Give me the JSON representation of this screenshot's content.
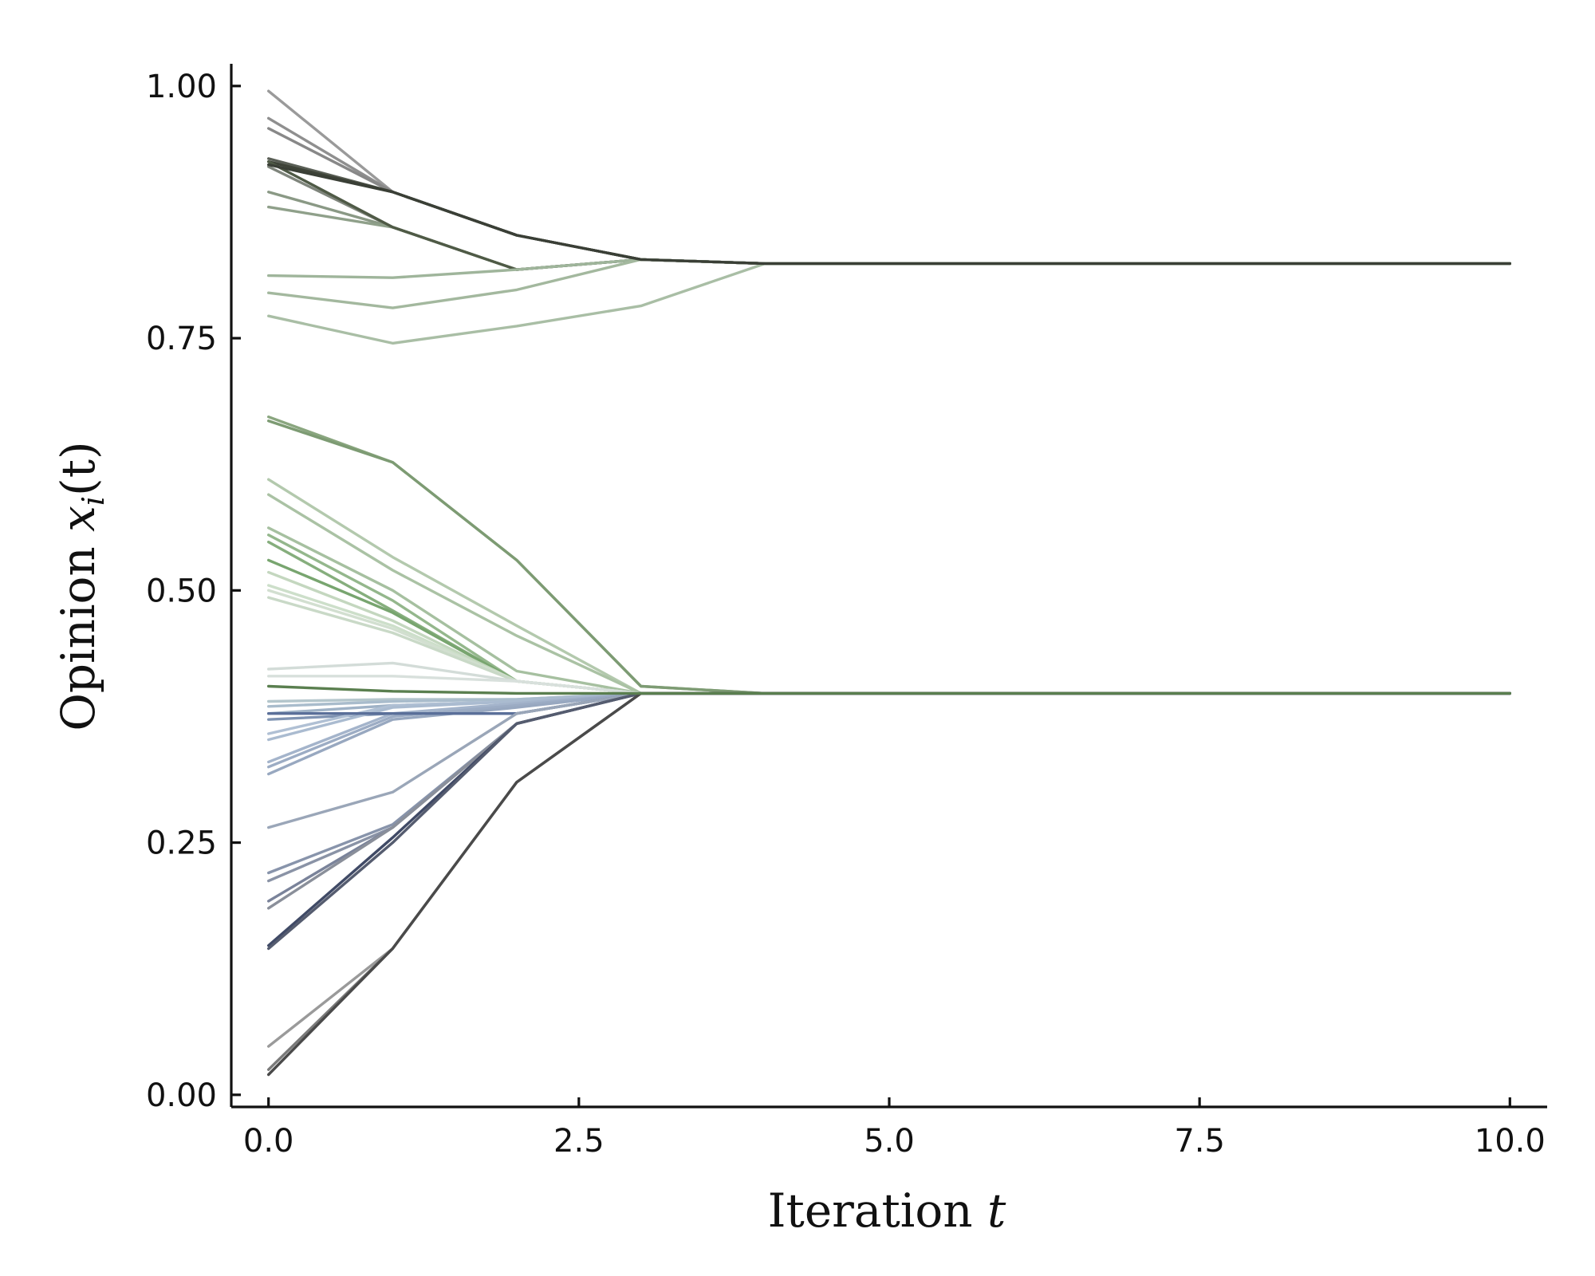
{
  "chart_data": {
    "type": "line",
    "xlabel": {
      "text": "Iteration",
      "var": "t"
    },
    "ylabel": {
      "text": "Opinion",
      "var": "x",
      "sub": "i",
      "arg": "(t)"
    },
    "xlim": [
      -0.3,
      10.3
    ],
    "ylim": [
      -0.012,
      1.022
    ],
    "x": [
      0,
      1,
      2,
      3,
      4,
      5,
      6,
      7,
      8,
      9,
      10
    ],
    "x_ticks": [
      0.0,
      2.5,
      5.0,
      7.5,
      10.0
    ],
    "x_tick_labels": [
      "0.0",
      "2.5",
      "5.0",
      "7.5",
      "10.0"
    ],
    "y_ticks": [
      0.0,
      0.25,
      0.5,
      0.75,
      1.0
    ],
    "y_tick_labels": [
      "0.00",
      "0.25",
      "0.50",
      "0.75",
      "1.00"
    ],
    "grid": false,
    "legend": "none",
    "series": [
      {
        "color": "#9a9a9a",
        "values": [
          0.995,
          0.895,
          0.852,
          0.828,
          0.824,
          0.824,
          0.824,
          0.824,
          0.824,
          0.824,
          0.824
        ]
      },
      {
        "color": "#8f8f8f",
        "values": [
          0.968,
          0.895,
          0.852,
          0.828,
          0.824,
          0.824,
          0.824,
          0.824,
          0.824,
          0.824,
          0.824
        ]
      },
      {
        "color": "#888888",
        "values": [
          0.958,
          0.895,
          0.852,
          0.828,
          0.824,
          0.824,
          0.824,
          0.824,
          0.824,
          0.824,
          0.824
        ]
      },
      {
        "color": "#5a5f56",
        "values": [
          0.928,
          0.895,
          0.852,
          0.828,
          0.824,
          0.824,
          0.824,
          0.824,
          0.824,
          0.824,
          0.824
        ]
      },
      {
        "color": "#7f857c",
        "values": [
          0.92,
          0.86,
          0.818,
          0.828,
          0.824,
          0.824,
          0.824,
          0.824,
          0.824,
          0.824,
          0.824
        ]
      },
      {
        "color": "#8a9985",
        "values": [
          0.895,
          0.86,
          0.818,
          0.828,
          0.824,
          0.824,
          0.824,
          0.824,
          0.824,
          0.824,
          0.824
        ]
      },
      {
        "color": "#8fa08a",
        "values": [
          0.88,
          0.86,
          0.818,
          0.828,
          0.824,
          0.824,
          0.824,
          0.824,
          0.824,
          0.824,
          0.824
        ]
      },
      {
        "color": "#3e4338",
        "values": [
          0.925,
          0.895,
          0.852,
          0.828,
          0.824,
          0.824,
          0.824,
          0.824,
          0.824,
          0.824,
          0.824
        ]
      },
      {
        "color": "#4f5a46",
        "values": [
          0.925,
          0.86,
          0.818,
          0.828,
          0.824,
          0.824,
          0.824,
          0.824,
          0.824,
          0.824,
          0.824
        ]
      },
      {
        "color": "#9fb59b",
        "values": [
          0.812,
          0.81,
          0.818,
          0.828,
          0.824,
          0.824,
          0.824,
          0.824,
          0.824,
          0.824,
          0.824
        ]
      },
      {
        "color": "#a3b89e",
        "values": [
          0.795,
          0.78,
          0.798,
          0.828,
          0.824,
          0.824,
          0.824,
          0.824,
          0.824,
          0.824,
          0.824
        ]
      },
      {
        "color": "#a9bea5",
        "values": [
          0.772,
          0.745,
          0.762,
          0.782,
          0.824,
          0.824,
          0.824,
          0.824,
          0.824,
          0.824,
          0.824
        ]
      },
      {
        "color": "#8aa67f",
        "values": [
          0.672,
          0.627,
          0.53,
          0.405,
          0.398,
          0.398,
          0.398,
          0.398,
          0.398,
          0.398,
          0.398
        ]
      },
      {
        "color": "#7d9b73",
        "values": [
          0.668,
          0.627,
          0.53,
          0.405,
          0.398,
          0.398,
          0.398,
          0.398,
          0.398,
          0.398,
          0.398
        ]
      },
      {
        "color": "#b3c9ad",
        "values": [
          0.61,
          0.533,
          0.465,
          0.398,
          0.398,
          0.398,
          0.398,
          0.398,
          0.398,
          0.398,
          0.398
        ]
      },
      {
        "color": "#aac2a4",
        "values": [
          0.595,
          0.52,
          0.455,
          0.398,
          0.398,
          0.398,
          0.398,
          0.398,
          0.398,
          0.398,
          0.398
        ]
      },
      {
        "color": "#a6c0a0",
        "values": [
          0.562,
          0.5,
          0.42,
          0.398,
          0.398,
          0.398,
          0.398,
          0.398,
          0.398,
          0.398,
          0.398
        ]
      },
      {
        "color": "#94b78c",
        "values": [
          0.555,
          0.49,
          0.41,
          0.398,
          0.398,
          0.398,
          0.398,
          0.398,
          0.398,
          0.398,
          0.398
        ]
      },
      {
        "color": "#86ae7d",
        "values": [
          0.548,
          0.48,
          0.41,
          0.398,
          0.398,
          0.398,
          0.398,
          0.398,
          0.398,
          0.398,
          0.398
        ]
      },
      {
        "color": "#78a56f",
        "values": [
          0.53,
          0.478,
          0.41,
          0.398,
          0.398,
          0.398,
          0.398,
          0.398,
          0.398,
          0.398,
          0.398
        ]
      },
      {
        "color": "#c4d7bf",
        "values": [
          0.518,
          0.47,
          0.41,
          0.398,
          0.398,
          0.398,
          0.398,
          0.398,
          0.398,
          0.398,
          0.398
        ]
      },
      {
        "color": "#cddfca",
        "values": [
          0.505,
          0.465,
          0.41,
          0.398,
          0.398,
          0.398,
          0.398,
          0.398,
          0.398,
          0.398,
          0.398
        ]
      },
      {
        "color": "#d2dfd0",
        "values": [
          0.5,
          0.462,
          0.41,
          0.398,
          0.398,
          0.398,
          0.398,
          0.398,
          0.398,
          0.398,
          0.398
        ]
      },
      {
        "color": "#c9d9c7",
        "values": [
          0.493,
          0.458,
          0.41,
          0.398,
          0.398,
          0.398,
          0.398,
          0.398,
          0.398,
          0.398,
          0.398
        ]
      },
      {
        "color": "#d3dcd8",
        "values": [
          0.422,
          0.428,
          0.41,
          0.398,
          0.398,
          0.398,
          0.398,
          0.398,
          0.398,
          0.398,
          0.398
        ]
      },
      {
        "color": "#d8e0dc",
        "values": [
          0.415,
          0.415,
          0.41,
          0.398,
          0.398,
          0.398,
          0.398,
          0.398,
          0.398,
          0.398,
          0.398
        ]
      },
      {
        "color": "#b4c6cc",
        "values": [
          0.39,
          0.392,
          0.392,
          0.398,
          0.398,
          0.398,
          0.398,
          0.398,
          0.398,
          0.398,
          0.398
        ]
      },
      {
        "color": "#a9bccc",
        "values": [
          0.385,
          0.39,
          0.392,
          0.398,
          0.398,
          0.398,
          0.398,
          0.398,
          0.398,
          0.398,
          0.398
        ]
      },
      {
        "color": "#9fb2c6",
        "values": [
          0.378,
          0.386,
          0.39,
          0.398,
          0.398,
          0.398,
          0.398,
          0.398,
          0.398,
          0.398,
          0.398
        ]
      },
      {
        "color": "#7f93b2",
        "values": [
          0.372,
          0.378,
          0.378,
          0.398,
          0.398,
          0.398,
          0.398,
          0.398,
          0.398,
          0.398,
          0.398
        ]
      },
      {
        "color": "#b0c0d4",
        "values": [
          0.358,
          0.386,
          0.39,
          0.398,
          0.398,
          0.398,
          0.398,
          0.398,
          0.398,
          0.398,
          0.398
        ]
      },
      {
        "color": "#aabbd0",
        "values": [
          0.352,
          0.384,
          0.39,
          0.398,
          0.398,
          0.398,
          0.398,
          0.398,
          0.398,
          0.398,
          0.398
        ]
      },
      {
        "color": "#a4b4cb",
        "values": [
          0.33,
          0.378,
          0.388,
          0.398,
          0.398,
          0.398,
          0.398,
          0.398,
          0.398,
          0.398,
          0.398
        ]
      },
      {
        "color": "#9cacc4",
        "values": [
          0.325,
          0.375,
          0.386,
          0.398,
          0.398,
          0.398,
          0.398,
          0.398,
          0.398,
          0.398,
          0.398
        ]
      },
      {
        "color": "#98a8c0",
        "values": [
          0.318,
          0.372,
          0.384,
          0.398,
          0.398,
          0.398,
          0.398,
          0.398,
          0.398,
          0.398,
          0.398
        ]
      },
      {
        "color": "#5a6f99",
        "values": [
          0.378,
          0.378,
          0.378,
          0.398,
          0.398,
          0.398,
          0.398,
          0.398,
          0.398,
          0.398,
          0.398
        ]
      },
      {
        "color": "#9aa6b8",
        "values": [
          0.265,
          0.3,
          0.378,
          0.398,
          0.398,
          0.398,
          0.398,
          0.398,
          0.398,
          0.398,
          0.398
        ]
      },
      {
        "color": "#8894ab",
        "values": [
          0.22,
          0.268,
          0.368,
          0.398,
          0.398,
          0.398,
          0.398,
          0.398,
          0.398,
          0.398,
          0.398
        ]
      },
      {
        "color": "#8a93a6",
        "values": [
          0.212,
          0.265,
          0.368,
          0.398,
          0.398,
          0.398,
          0.398,
          0.398,
          0.398,
          0.398,
          0.398
        ]
      },
      {
        "color": "#7a839a",
        "values": [
          0.192,
          0.265,
          0.368,
          0.398,
          0.398,
          0.398,
          0.398,
          0.398,
          0.398,
          0.398,
          0.398
        ]
      },
      {
        "color": "#8a8f9a",
        "values": [
          0.185,
          0.265,
          0.368,
          0.398,
          0.398,
          0.398,
          0.398,
          0.398,
          0.398,
          0.398,
          0.398
        ]
      },
      {
        "color": "#404a66",
        "values": [
          0.148,
          0.255,
          0.368,
          0.398,
          0.398,
          0.398,
          0.398,
          0.398,
          0.398,
          0.398,
          0.398
        ]
      },
      {
        "color": "#555c6f",
        "values": [
          0.145,
          0.25,
          0.368,
          0.398,
          0.398,
          0.398,
          0.398,
          0.398,
          0.398,
          0.398,
          0.398
        ]
      },
      {
        "color": "#9a9a9a",
        "values": [
          0.048,
          0.145,
          0.31,
          0.398,
          0.398,
          0.398,
          0.398,
          0.398,
          0.398,
          0.398,
          0.398
        ]
      },
      {
        "color": "#7a7a7a",
        "values": [
          0.025,
          0.145,
          0.31,
          0.398,
          0.398,
          0.398,
          0.398,
          0.398,
          0.398,
          0.398,
          0.398
        ]
      },
      {
        "color": "#4a4a4a",
        "values": [
          0.02,
          0.145,
          0.31,
          0.398,
          0.398,
          0.398,
          0.398,
          0.398,
          0.398,
          0.398,
          0.398
        ]
      },
      {
        "color": "#3a3f36",
        "values": [
          0.922,
          0.895,
          0.852,
          0.828,
          0.824,
          0.824,
          0.824,
          0.824,
          0.824,
          0.824,
          0.824
        ]
      },
      {
        "color": "#5a7f4f",
        "values": [
          0.405,
          0.4,
          0.398,
          0.398,
          0.398,
          0.398,
          0.398,
          0.398,
          0.398,
          0.398,
          0.398
        ]
      }
    ]
  }
}
